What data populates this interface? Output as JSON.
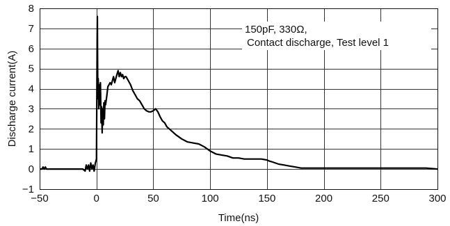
{
  "chart_data": {
    "type": "line",
    "xlabel": "Time(ns)",
    "ylabel": "Discharge current(A)",
    "xlim": [
      -50,
      300
    ],
    "ylim": [
      -1,
      8
    ],
    "x_ticks": [
      -50,
      0,
      50,
      100,
      150,
      200,
      250,
      300
    ],
    "x_tick_labels": [
      "−50",
      "0",
      "50",
      "100",
      "150",
      "200",
      "250",
      "300"
    ],
    "y_ticks": [
      -1,
      0,
      1,
      2,
      3,
      4,
      5,
      6,
      7,
      8
    ],
    "y_tick_labels": [
      "−1",
      "0",
      "1",
      "2",
      "3",
      "4",
      "5",
      "6",
      "7",
      "8"
    ],
    "grid": true,
    "annotation": [
      "150pF, 330Ω,",
      "Contact discharge, Test level 1"
    ],
    "series": [
      {
        "x": [
          -50,
          -48,
          -47,
          -46,
          -45,
          -44,
          -40,
          -35,
          -30,
          -25,
          -20,
          -15,
          -12,
          -10,
          -9,
          -8,
          -7,
          -6,
          -5,
          -4,
          -3,
          -2,
          -1,
          0,
          0.3,
          0.6,
          0.8,
          1,
          1.2,
          1.5,
          1.8,
          2,
          2.5,
          3,
          3.5,
          4,
          4.5,
          5,
          5.5,
          6,
          6.5,
          7,
          7.5,
          8,
          9,
          10,
          11,
          12,
          13,
          14,
          15,
          16,
          17,
          18,
          19,
          20,
          21,
          22,
          23,
          24,
          25,
          26,
          28,
          30,
          32,
          34,
          36,
          38,
          40,
          42,
          44,
          46,
          48,
          50,
          52,
          54,
          56,
          58,
          60,
          62,
          64,
          66,
          68,
          70,
          75,
          80,
          85,
          90,
          95,
          100,
          105,
          110,
          115,
          120,
          125,
          130,
          135,
          140,
          145,
          150,
          152,
          155,
          160,
          165,
          170,
          175,
          180,
          185,
          190,
          195,
          200,
          210,
          220,
          230,
          240,
          250,
          260,
          270,
          280,
          290,
          300
        ],
        "y": [
          0,
          0,
          0.1,
          0,
          0.1,
          0,
          0,
          0,
          0,
          0,
          0,
          0,
          0,
          -0.1,
          0.2,
          0,
          0.2,
          -0.1,
          0.3,
          0,
          0.2,
          -0.1,
          0.3,
          0.5,
          3.5,
          6.5,
          7.6,
          5.5,
          3.5,
          4.5,
          3.8,
          3,
          4.2,
          3.2,
          4.3,
          2.3,
          3.1,
          1.8,
          3,
          2.2,
          3.3,
          2.5,
          3.4,
          3.2,
          3.6,
          4.1,
          4.2,
          4.3,
          4.2,
          4.4,
          4.6,
          4.3,
          4.5,
          4.7,
          4.9,
          4.6,
          4.8,
          4.6,
          4.7,
          4.5,
          4.6,
          4.6,
          4.4,
          4.2,
          3.9,
          3.7,
          3.5,
          3.4,
          3.2,
          3,
          2.9,
          2.85,
          2.85,
          2.9,
          3,
          2.85,
          2.6,
          2.4,
          2.3,
          2.1,
          2,
          1.9,
          1.8,
          1.7,
          1.5,
          1.35,
          1.3,
          1.25,
          1.1,
          0.9,
          0.75,
          0.7,
          0.65,
          0.55,
          0.55,
          0.5,
          0.5,
          0.5,
          0.5,
          0.45,
          0.4,
          0.35,
          0.25,
          0.2,
          0.15,
          0.1,
          0.05,
          0.05,
          0.05,
          0.05,
          0.05,
          0.05,
          0.05,
          0.05,
          0.05,
          0.05,
          0.05,
          0.05,
          0.05,
          0.05,
          0
        ]
      }
    ]
  }
}
